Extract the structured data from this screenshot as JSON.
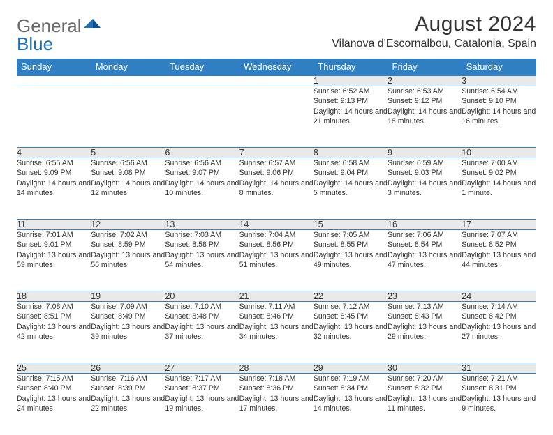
{
  "logo": {
    "part1": "General",
    "part2": "Blue"
  },
  "title": "August 2024",
  "location": "Vilanova d'Escornalbou, Catalonia, Spain",
  "colors": {
    "header_bg": "#2f7fc2",
    "header_text": "#ffffff",
    "daynum_bg": "#e9e9e9",
    "rule": "#2f7fc2",
    "text": "#333333",
    "logo_gray": "#6a6a6a",
    "logo_blue": "#1e6fb8"
  },
  "weekdays": [
    "Sunday",
    "Monday",
    "Tuesday",
    "Wednesday",
    "Thursday",
    "Friday",
    "Saturday"
  ],
  "weeks": [
    [
      null,
      null,
      null,
      null,
      {
        "n": "1",
        "sr": "6:52 AM",
        "ss": "9:13 PM",
        "dl": "14 hours and 21 minutes."
      },
      {
        "n": "2",
        "sr": "6:53 AM",
        "ss": "9:12 PM",
        "dl": "14 hours and 18 minutes."
      },
      {
        "n": "3",
        "sr": "6:54 AM",
        "ss": "9:10 PM",
        "dl": "14 hours and 16 minutes."
      }
    ],
    [
      {
        "n": "4",
        "sr": "6:55 AM",
        "ss": "9:09 PM",
        "dl": "14 hours and 14 minutes."
      },
      {
        "n": "5",
        "sr": "6:56 AM",
        "ss": "9:08 PM",
        "dl": "14 hours and 12 minutes."
      },
      {
        "n": "6",
        "sr": "6:56 AM",
        "ss": "9:07 PM",
        "dl": "14 hours and 10 minutes."
      },
      {
        "n": "7",
        "sr": "6:57 AM",
        "ss": "9:06 PM",
        "dl": "14 hours and 8 minutes."
      },
      {
        "n": "8",
        "sr": "6:58 AM",
        "ss": "9:04 PM",
        "dl": "14 hours and 5 minutes."
      },
      {
        "n": "9",
        "sr": "6:59 AM",
        "ss": "9:03 PM",
        "dl": "14 hours and 3 minutes."
      },
      {
        "n": "10",
        "sr": "7:00 AM",
        "ss": "9:02 PM",
        "dl": "14 hours and 1 minute."
      }
    ],
    [
      {
        "n": "11",
        "sr": "7:01 AM",
        "ss": "9:01 PM",
        "dl": "13 hours and 59 minutes."
      },
      {
        "n": "12",
        "sr": "7:02 AM",
        "ss": "8:59 PM",
        "dl": "13 hours and 56 minutes."
      },
      {
        "n": "13",
        "sr": "7:03 AM",
        "ss": "8:58 PM",
        "dl": "13 hours and 54 minutes."
      },
      {
        "n": "14",
        "sr": "7:04 AM",
        "ss": "8:56 PM",
        "dl": "13 hours and 51 minutes."
      },
      {
        "n": "15",
        "sr": "7:05 AM",
        "ss": "8:55 PM",
        "dl": "13 hours and 49 minutes."
      },
      {
        "n": "16",
        "sr": "7:06 AM",
        "ss": "8:54 PM",
        "dl": "13 hours and 47 minutes."
      },
      {
        "n": "17",
        "sr": "7:07 AM",
        "ss": "8:52 PM",
        "dl": "13 hours and 44 minutes."
      }
    ],
    [
      {
        "n": "18",
        "sr": "7:08 AM",
        "ss": "8:51 PM",
        "dl": "13 hours and 42 minutes."
      },
      {
        "n": "19",
        "sr": "7:09 AM",
        "ss": "8:49 PM",
        "dl": "13 hours and 39 minutes."
      },
      {
        "n": "20",
        "sr": "7:10 AM",
        "ss": "8:48 PM",
        "dl": "13 hours and 37 minutes."
      },
      {
        "n": "21",
        "sr": "7:11 AM",
        "ss": "8:46 PM",
        "dl": "13 hours and 34 minutes."
      },
      {
        "n": "22",
        "sr": "7:12 AM",
        "ss": "8:45 PM",
        "dl": "13 hours and 32 minutes."
      },
      {
        "n": "23",
        "sr": "7:13 AM",
        "ss": "8:43 PM",
        "dl": "13 hours and 29 minutes."
      },
      {
        "n": "24",
        "sr": "7:14 AM",
        "ss": "8:42 PM",
        "dl": "13 hours and 27 minutes."
      }
    ],
    [
      {
        "n": "25",
        "sr": "7:15 AM",
        "ss": "8:40 PM",
        "dl": "13 hours and 24 minutes."
      },
      {
        "n": "26",
        "sr": "7:16 AM",
        "ss": "8:39 PM",
        "dl": "13 hours and 22 minutes."
      },
      {
        "n": "27",
        "sr": "7:17 AM",
        "ss": "8:37 PM",
        "dl": "13 hours and 19 minutes."
      },
      {
        "n": "28",
        "sr": "7:18 AM",
        "ss": "8:36 PM",
        "dl": "13 hours and 17 minutes."
      },
      {
        "n": "29",
        "sr": "7:19 AM",
        "ss": "8:34 PM",
        "dl": "13 hours and 14 minutes."
      },
      {
        "n": "30",
        "sr": "7:20 AM",
        "ss": "8:32 PM",
        "dl": "13 hours and 11 minutes."
      },
      {
        "n": "31",
        "sr": "7:21 AM",
        "ss": "8:31 PM",
        "dl": "13 hours and 9 minutes."
      }
    ]
  ],
  "labels": {
    "sunrise": "Sunrise:",
    "sunset": "Sunset:",
    "daylight": "Daylight:"
  }
}
